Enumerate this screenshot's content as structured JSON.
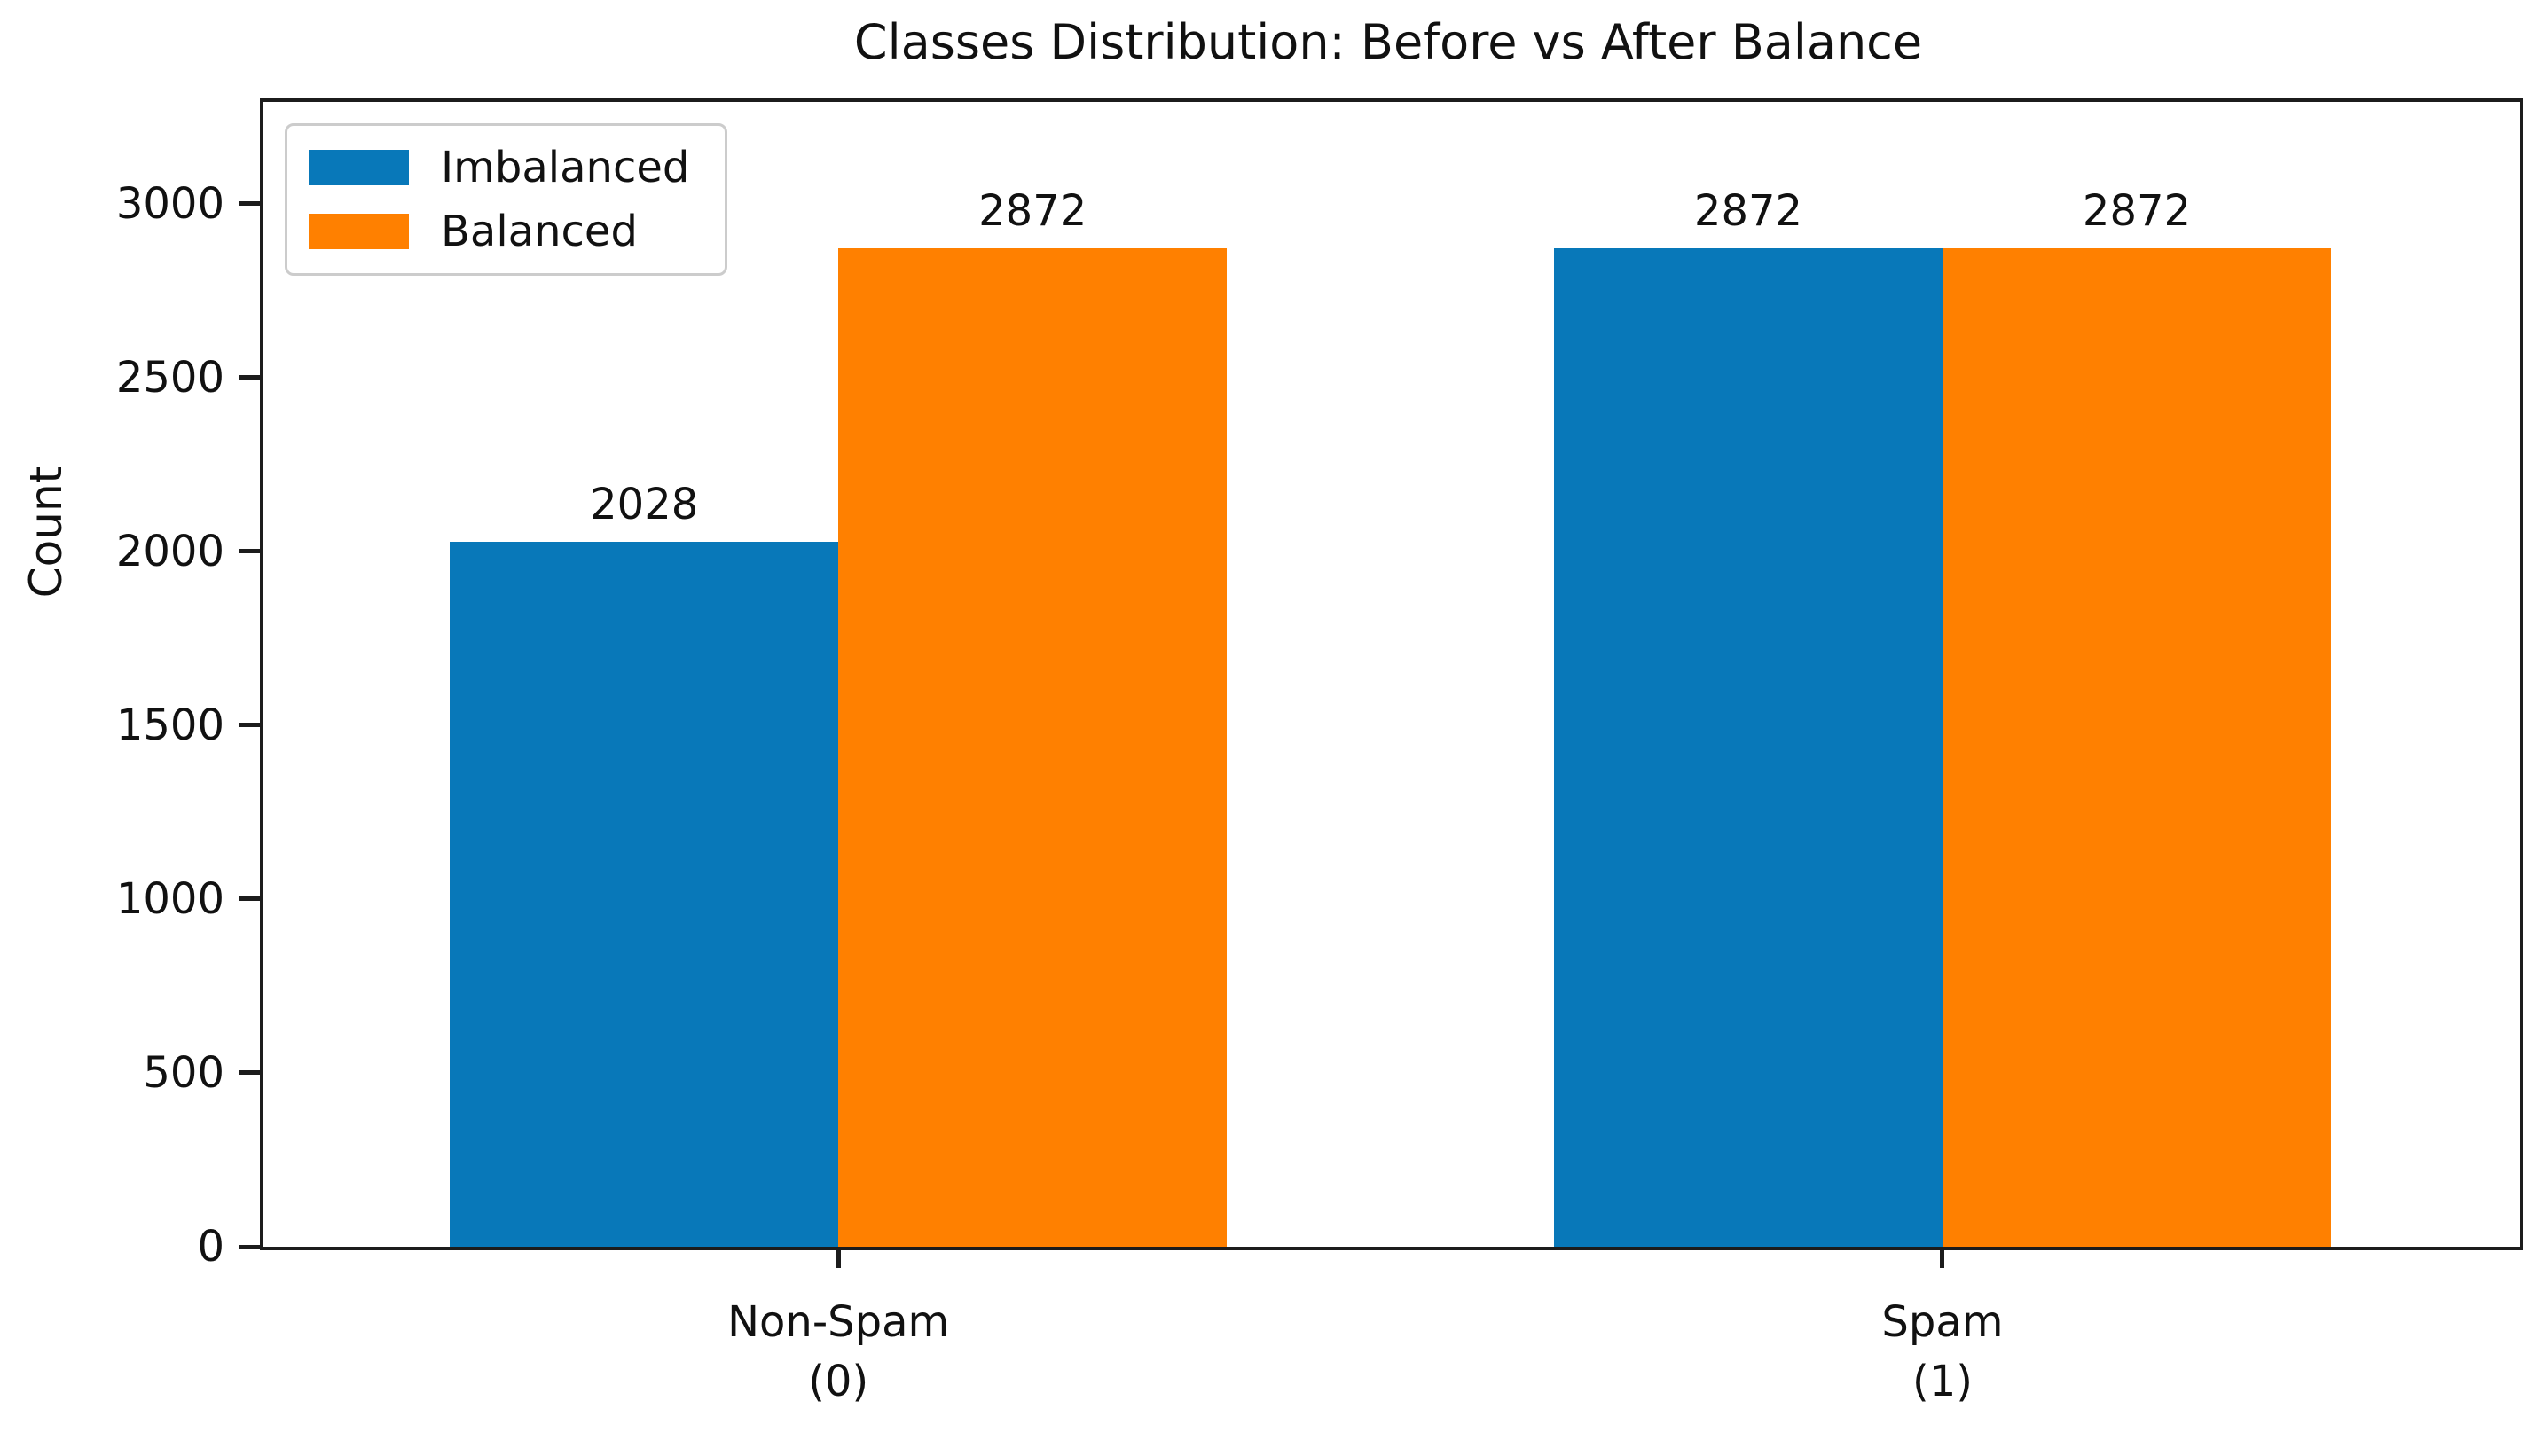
{
  "colors": {
    "imbalanced_blue": "#0878b9",
    "balanced_orange": "#ff8000",
    "axis": "#1c1c1c",
    "text": "#111111",
    "legend_border": "#cccccc",
    "background": "#ffffff"
  },
  "chart_data": {
    "type": "bar",
    "title": "Classes Distribution: Before vs After Balance",
    "xlabel": "",
    "ylabel": "Count",
    "categories": [
      {
        "line1": "Non-Spam",
        "line2": "(0)"
      },
      {
        "line1": "Spam",
        "line2": "(1)"
      }
    ],
    "series": [
      {
        "name": "Imbalanced",
        "color": "#0878b9",
        "values": [
          2028,
          2872
        ]
      },
      {
        "name": "Balanced",
        "color": "#ff8000",
        "values": [
          2872,
          2872
        ]
      }
    ],
    "bar_value_labels": [
      [
        "2028",
        "2872"
      ],
      [
        "2872",
        "2872"
      ]
    ],
    "yticks": [
      "0",
      "500",
      "1000",
      "1500",
      "2000",
      "2500",
      "3000"
    ],
    "ylim": [
      0,
      3293
    ],
    "grid": false,
    "legend_position": "upper left",
    "legend_entries": [
      "Imbalanced",
      "Balanced"
    ]
  }
}
